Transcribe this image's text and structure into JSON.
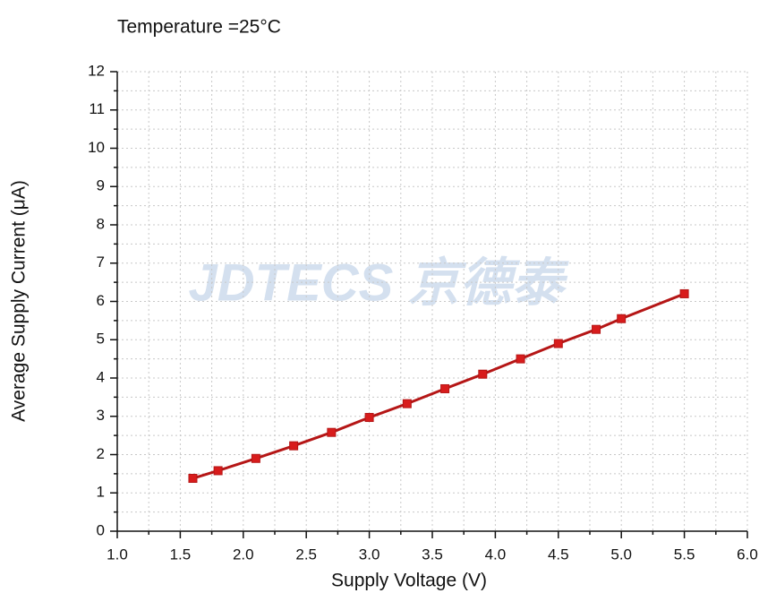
{
  "chart_data": {
    "type": "line",
    "title": "Temperature =25°C",
    "watermark": "JDTECS 京德泰",
    "x_label": "Supply Voltage (V)",
    "y_label": "Average Supply Current (μA)",
    "x": [
      1.6,
      1.8,
      2.1,
      2.4,
      2.7,
      3.0,
      3.3,
      3.6,
      3.9,
      4.2,
      4.5,
      4.8,
      5.0,
      5.5
    ],
    "series": [
      {
        "color": "#b51616",
        "values": [
          1.38,
          1.58,
          1.9,
          2.23,
          2.58,
          2.97,
          3.33,
          3.72,
          4.1,
          4.5,
          4.9,
          5.27,
          5.55,
          6.2
        ]
      }
    ],
    "xlim": [
      1.0,
      6.0
    ],
    "xticks": [
      {
        "value": 1,
        "label": "1.0"
      },
      1.5,
      {
        "value": 2,
        "label": "2.0"
      },
      2.5,
      {
        "value": 3,
        "label": "3.0"
      },
      3.5,
      {
        "value": 4,
        "label": "4.0"
      },
      4.5,
      {
        "value": 5,
        "label": "5.0"
      },
      5.5,
      {
        "value": 6,
        "label": "6.0"
      }
    ],
    "ylim": [
      0,
      12
    ],
    "yticks": [
      0,
      1,
      2,
      3,
      4,
      5,
      6,
      7,
      8,
      9,
      10,
      11,
      12
    ],
    "grid": true
  }
}
